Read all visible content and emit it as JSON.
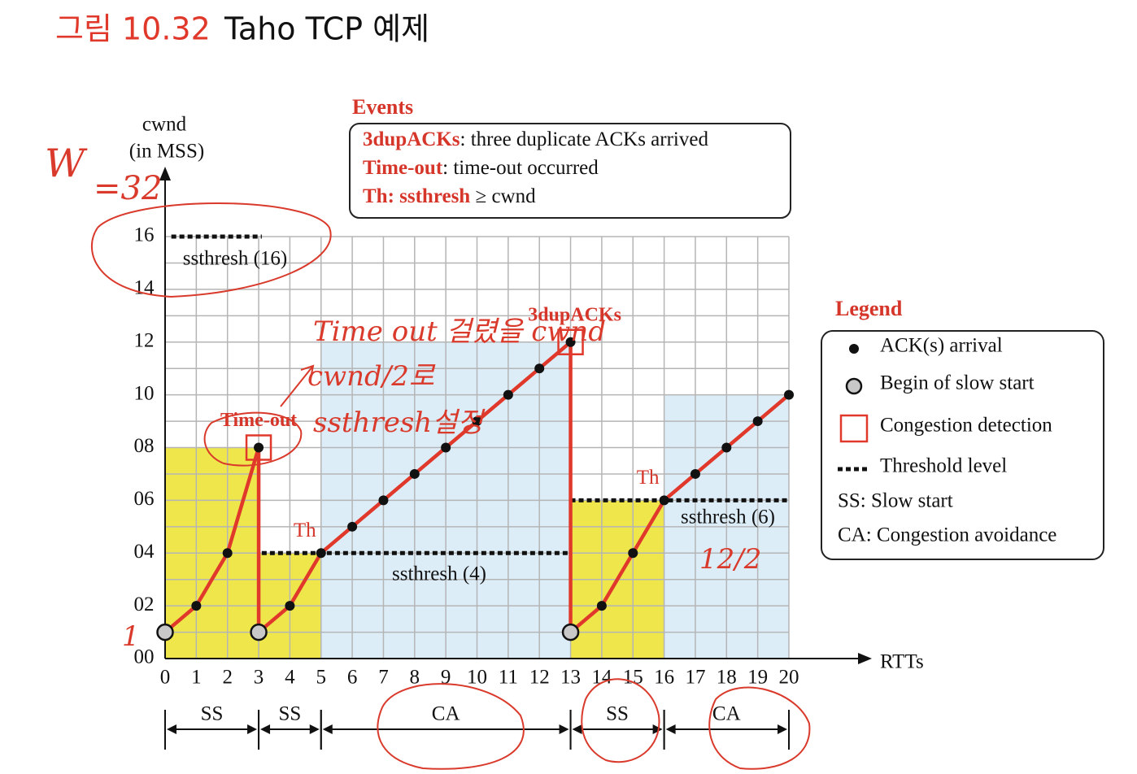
{
  "title_prefix": "그림 10.32",
  "title": "Taho TCP 예제",
  "chart_data": {
    "type": "line",
    "ylabel": [
      "cwnd",
      "(in MSS)"
    ],
    "xlabel": "RTTs",
    "x": [
      0,
      1,
      2,
      3,
      3,
      4,
      5,
      6,
      7,
      8,
      9,
      10,
      11,
      12,
      13,
      13,
      14,
      15,
      16,
      17,
      18,
      19,
      20
    ],
    "values": [
      1,
      2,
      4,
      8,
      1,
      2,
      4,
      5,
      6,
      7,
      8,
      9,
      10,
      11,
      12,
      1,
      2,
      4,
      6,
      7,
      8,
      9,
      10
    ],
    "color": "#e0392b",
    "xlim": [
      0,
      20
    ],
    "ylim": [
      0,
      16
    ],
    "xticks": [
      0,
      1,
      2,
      3,
      4,
      5,
      6,
      7,
      8,
      9,
      10,
      11,
      12,
      13,
      14,
      15,
      16,
      17,
      18,
      19,
      20
    ],
    "yticks": [
      {
        "value": 0,
        "label": "00"
      },
      {
        "value": 2,
        "label": "02"
      },
      {
        "value": 4,
        "label": "04"
      },
      {
        "value": 6,
        "label": "06"
      },
      {
        "value": 8,
        "label": "08"
      },
      10,
      12,
      14,
      16
    ],
    "y_minor_ticks": [
      1,
      3,
      5,
      7,
      9,
      11,
      13,
      15
    ],
    "grid": true,
    "slow_start_begins": {
      "x": [
        0,
        3,
        13
      ],
      "values": [
        1,
        1,
        1
      ]
    },
    "congestion_detections": {
      "x": [
        3,
        13
      ],
      "values": [
        8,
        12
      ],
      "labels": [
        "Time-out",
        "3dupACKs"
      ]
    },
    "thresholds": [
      {
        "value": 16,
        "x_range": [
          0.2,
          3.1
        ],
        "label": "ssthresh (16)"
      },
      {
        "value": 4,
        "x_range": [
          3.1,
          13
        ],
        "label": "ssthresh (4)"
      },
      {
        "value": 6,
        "x_range": [
          13,
          20
        ],
        "label": "ssthresh (6)"
      }
    ],
    "th_marks": {
      "x": [
        5,
        16
      ],
      "values": [
        4,
        6
      ],
      "label": "Th"
    },
    "regions": [
      {
        "x_range": [
          0,
          3
        ],
        "top": 8,
        "color": "#efe64b"
      },
      {
        "x_range": [
          3,
          5
        ],
        "top": 4,
        "color": "#efe64b"
      },
      {
        "x_range": [
          5,
          13
        ],
        "top": 12,
        "color": "#dcedf8"
      },
      {
        "x_range": [
          13,
          16
        ],
        "top": 6,
        "color": "#efe64b"
      },
      {
        "x_range": [
          16,
          20
        ],
        "top": 10,
        "color": "#dcedf8"
      }
    ],
    "phases": [
      {
        "label": "SS",
        "x_range": [
          0,
          3
        ]
      },
      {
        "label": "SS",
        "x_range": [
          3,
          5
        ]
      },
      {
        "label": "CA",
        "x_range": [
          5,
          13
        ]
      },
      {
        "label": "SS",
        "x_range": [
          13,
          16
        ]
      },
      {
        "label": "CA",
        "x_range": [
          16,
          20
        ]
      }
    ]
  },
  "events": {
    "title": "Events",
    "items": [
      {
        "term": "3dupACKs",
        "desc": ": three duplicate ACKs arrived"
      },
      {
        "term": "Time-out",
        "desc": ": time-out occurred"
      },
      {
        "term": "Th: ssthresh",
        "desc": " ≥  cwnd"
      }
    ]
  },
  "legend": {
    "title": "Legend",
    "items": [
      "ACK(s) arrival",
      "Begin of slow start",
      "Congestion detection",
      "Threshold level",
      "SS: Slow start",
      "CA: Congestion avoidance"
    ]
  },
  "handwriting": [
    "W",
    "=32",
    "Time out 걸렸을 cwnd",
    "cwnd/2로",
    "ssthresh설정",
    "12/2",
    "1"
  ]
}
